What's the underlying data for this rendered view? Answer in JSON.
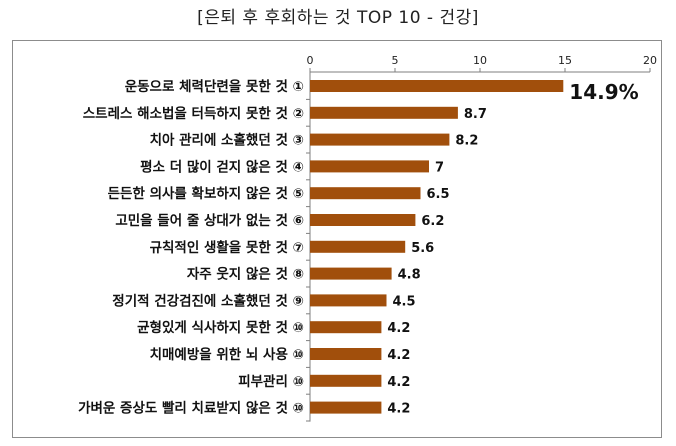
{
  "chart_data": {
    "type": "bar",
    "orientation": "horizontal",
    "title": "[은퇴 후 후회하는 것 TOP 10 - 건강]",
    "categories": [
      "운동으로 체력단련을 못한 것 ①",
      "스트레스 해소법을 터득하지 못한 것 ②",
      "치아 관리에 소홀했던 것 ③",
      "평소 더 많이 걷지 않은 것 ④",
      "든든한 의사를 확보하지 않은 것 ⑤",
      "고민을 들어 줄 상대가 없는 것 ⑥",
      "규칙적인 생활을 못한 것 ⑦",
      "자주 웃지 않은 것 ⑧",
      "정기적 건강검진에 소홀했던 것 ⑨",
      "균형있게 식사하지 못한 것 ⑩",
      "치매예방을 위한 뇌 사용 ⑩",
      "피부관리 ⑩",
      "가벼운 증상도 빨리 치료받지 않은 것 ⑩"
    ],
    "values": [
      14.9,
      8.7,
      8.2,
      7,
      6.5,
      6.2,
      5.6,
      4.8,
      4.5,
      4.2,
      4.2,
      4.2,
      4.2
    ],
    "value_labels": [
      "14.9%",
      "8.7",
      "8.2",
      "7",
      "6.5",
      "6.2",
      "5.6",
      "4.8",
      "4.5",
      "4.2",
      "4.2",
      "4.2",
      "4.2"
    ],
    "xlim": [
      0,
      20
    ],
    "xticks": [
      0,
      5,
      10,
      15,
      20
    ],
    "axis_position": "top",
    "grid": false,
    "legend": "none",
    "bar_color": "#a14f0c"
  }
}
